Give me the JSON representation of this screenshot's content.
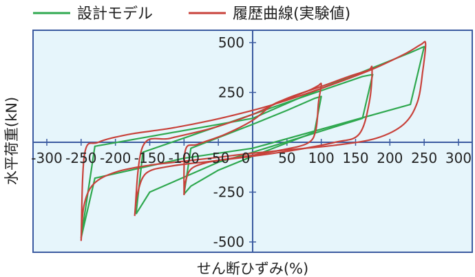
{
  "chart_data": {
    "type": "line",
    "xlabel": "せん断ひずみ(%)",
    "ylabel": "水平荷重(kN)",
    "xlim": [
      -310,
      310
    ],
    "ylim": [
      -530,
      530
    ],
    "x_ticks": [
      "-300",
      "-250",
      "-200",
      "-150",
      "-100",
      "-50",
      "0",
      "50",
      "100",
      "150",
      "200",
      "250",
      "300"
    ],
    "y_ticks": [
      "500",
      "250",
      "-250",
      "-500"
    ],
    "plot_background": "#e6f5fb",
    "legend": {
      "placement": "top"
    },
    "series": [
      {
        "name": "設計モデル",
        "color": "#2fa84f",
        "loops": [
          [
            [
              -100,
              -260
            ],
            [
              -90,
              -220
            ],
            [
              -50,
              -140
            ],
            [
              0,
              -70
            ],
            [
              90,
              50
            ],
            [
              100,
              230
            ],
            [
              90,
              220
            ],
            [
              50,
              160
            ],
            [
              0,
              90
            ],
            [
              -90,
              -30
            ],
            [
              -100,
              -260
            ]
          ],
          [
            [
              -170,
              -360
            ],
            [
              -150,
              -250
            ],
            [
              -50,
              -100
            ],
            [
              0,
              -50
            ],
            [
              160,
              120
            ],
            [
              175,
              340
            ],
            [
              160,
              330
            ],
            [
              50,
              200
            ],
            [
              0,
              140
            ],
            [
              -160,
              -50
            ],
            [
              -170,
              -360
            ]
          ],
          [
            [
              -250,
              -480
            ],
            [
              -230,
              -180
            ],
            [
              -100,
              -80
            ],
            [
              0,
              -30
            ],
            [
              230,
              190
            ],
            [
              250,
              480
            ],
            [
              230,
              450
            ],
            [
              100,
              270
            ],
            [
              0,
              120
            ],
            [
              -230,
              -20
            ],
            [
              -250,
              -480
            ]
          ]
        ]
      },
      {
        "name": "履歴曲線(実験値)",
        "color": "#c8413a",
        "loops": [
          [
            [
              -100,
              -265
            ],
            [
              -98,
              -200
            ],
            [
              -90,
              -135
            ],
            [
              -70,
              -105
            ],
            [
              -40,
              -85
            ],
            [
              0,
              -65
            ],
            [
              40,
              -40
            ],
            [
              80,
              -5
            ],
            [
              92,
              60
            ],
            [
              96,
              200
            ],
            [
              100,
              290
            ],
            [
              96,
              285
            ],
            [
              85,
              265
            ],
            [
              60,
              230
            ],
            [
              30,
              190
            ],
            [
              0,
              110
            ],
            [
              -40,
              40
            ],
            [
              -80,
              -10
            ],
            [
              -98,
              -40
            ],
            [
              -100,
              -265
            ]
          ],
          [
            [
              -172,
              -370
            ],
            [
              -168,
              -260
            ],
            [
              -155,
              -155
            ],
            [
              -120,
              -120
            ],
            [
              -60,
              -95
            ],
            [
              0,
              -70
            ],
            [
              60,
              -40
            ],
            [
              120,
              0
            ],
            [
              155,
              40
            ],
            [
              170,
              200
            ],
            [
              174,
              370
            ],
            [
              168,
              360
            ],
            [
              140,
              330
            ],
            [
              100,
              280
            ],
            [
              50,
              220
            ],
            [
              0,
              140
            ],
            [
              -60,
              70
            ],
            [
              -120,
              20
            ],
            [
              -160,
              -20
            ],
            [
              -172,
              -370
            ]
          ],
          [
            [
              -250,
              -495
            ],
            [
              -246,
              -320
            ],
            [
              -232,
              -210
            ],
            [
              -200,
              -150
            ],
            [
              -150,
              -115
            ],
            [
              -100,
              -95
            ],
            [
              -50,
              -75
            ],
            [
              0,
              -55
            ],
            [
              60,
              -35
            ],
            [
              120,
              -15
            ],
            [
              180,
              20
            ],
            [
              220,
              90
            ],
            [
              240,
              200
            ],
            [
              248,
              360
            ],
            [
              252,
              495
            ],
            [
              245,
              490
            ],
            [
              220,
              440
            ],
            [
              170,
              360
            ],
            [
              100,
              270
            ],
            [
              40,
              200
            ],
            [
              0,
              160
            ],
            [
              -60,
              110
            ],
            [
              -120,
              70
            ],
            [
              -180,
              40
            ],
            [
              -225,
              0
            ],
            [
              -245,
              -60
            ],
            [
              -250,
              -495
            ]
          ]
        ]
      }
    ]
  }
}
